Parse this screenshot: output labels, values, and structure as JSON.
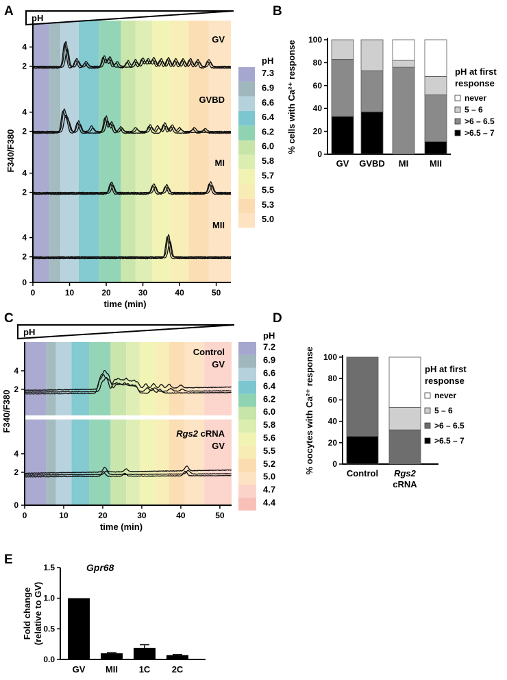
{
  "chart_data": [
    {
      "panel": "A",
      "type": "line",
      "xlabel": "time (min)",
      "ylabel": "F340/F380",
      "gradient_label": "pH",
      "xlim": [
        0,
        54
      ],
      "x_ticks": [
        "0",
        "10",
        "20",
        "30",
        "40",
        "50"
      ],
      "y_ticks_per_trace": [
        "2",
        "4"
      ],
      "y_tick_zero": "0",
      "ph_legend": {
        "title": "pH",
        "values": [
          "7.3",
          "6.9",
          "6.6",
          "6.4",
          "6.2",
          "6.0",
          "5.8",
          "5.7",
          "5.5",
          "5.3",
          "5.0"
        ],
        "colors": [
          "#a6a7cf",
          "#9fb7bd",
          "#b4d1dc",
          "#7cc7cf",
          "#8fd3b3",
          "#c7e5a8",
          "#dcedb0",
          "#f1f3b2",
          "#f7edb4",
          "#fbdcb0",
          "#fde3c2"
        ]
      },
      "band_edges_min": [
        0,
        4.5,
        7.5,
        12.5,
        18,
        24,
        28,
        32.5,
        37.5,
        42.5,
        48,
        54
      ],
      "baseline": 1.9,
      "series": [
        {
          "name": "GV",
          "peaks": [
            [
              9,
              2.6
            ],
            [
              12,
              0.8
            ],
            [
              14.5,
              0.5
            ],
            [
              19.5,
              1.1
            ],
            [
              21,
              1.0
            ],
            [
              23,
              0.5
            ],
            [
              26,
              0.6
            ],
            [
              28,
              0.7
            ],
            [
              30,
              0.9
            ],
            [
              31.5,
              0.8
            ],
            [
              33,
              0.9
            ],
            [
              35,
              0.8
            ],
            [
              37,
              0.9
            ],
            [
              39,
              0.8
            ],
            [
              41,
              0.8
            ],
            [
              43,
              0.8
            ],
            [
              45,
              0.7
            ],
            [
              48,
              0.7
            ]
          ]
        },
        {
          "name": "GVBD",
          "peaks": [
            [
              8.5,
              2.2
            ],
            [
              9.5,
              1.3
            ],
            [
              12.5,
              1.1
            ],
            [
              16,
              0.6
            ],
            [
              20,
              1.6
            ],
            [
              21.5,
              1.0
            ],
            [
              24,
              0.5
            ],
            [
              28,
              0.4
            ],
            [
              32,
              0.7
            ],
            [
              34,
              0.6
            ],
            [
              36,
              0.9
            ],
            [
              38,
              0.7
            ],
            [
              40,
              0.4
            ],
            [
              44,
              0.4
            ],
            [
              47,
              0.3
            ]
          ]
        },
        {
          "name": "MI",
          "peaks": [
            [
              21.5,
              1.1
            ],
            [
              33,
              0.9
            ],
            [
              36.5,
              0.8
            ],
            [
              48.5,
              1.1
            ]
          ]
        },
        {
          "name": "MII",
          "peaks": [
            [
              37,
              2.3
            ]
          ]
        }
      ]
    },
    {
      "panel": "B",
      "type": "bar",
      "ylabel": "% cells with Ca²⁺ response",
      "categories": [
        "GV",
        "GVBD",
        "MI",
        "MII"
      ],
      "ylim": [
        0,
        100
      ],
      "y_ticks": [
        "0",
        "20",
        "40",
        "60",
        "80",
        "100"
      ],
      "legend_title": [
        "pH at first",
        "response"
      ],
      "series": [
        {
          "name": ">6.5 – 7",
          "color": "#000000",
          "values": [
            33,
            37,
            0,
            11
          ]
        },
        {
          "name": ">6 – 6.5",
          "color": "#8a8a8a",
          "values": [
            50,
            36,
            76,
            41
          ]
        },
        {
          "name": "5 – 6",
          "color": "#cfcfcf",
          "values": [
            17,
            27,
            6,
            16
          ]
        },
        {
          "name": "never",
          "color": "#ffffff",
          "values": [
            0,
            0,
            18,
            32
          ]
        }
      ]
    },
    {
      "panel": "C",
      "type": "line",
      "xlabel": "time (min)",
      "ylabel": "F340/F380",
      "gradient_label": "pH",
      "xlim": [
        0,
        53
      ],
      "x_ticks": [
        "0",
        "10",
        "20",
        "30",
        "40",
        "50"
      ],
      "y_ticks_per_trace": [
        "2",
        "4"
      ],
      "y_tick_zero": "0",
      "ph_legend": {
        "title": "pH",
        "values": [
          "7.2",
          "6.9",
          "6.6",
          "6.4",
          "6.2",
          "6.0",
          "5.8",
          "5.6",
          "5.5",
          "5.2",
          "5.0",
          "4.7",
          "4.4"
        ],
        "colors": [
          "#a6a7cf",
          "#9fb7bd",
          "#b4d1dc",
          "#7cc7cf",
          "#8fd3b3",
          "#c7e5a8",
          "#dcedb0",
          "#f1f3b2",
          "#f7edb4",
          "#fbdcb0",
          "#fde3c2",
          "#fcd3c9",
          "#f9c0b8"
        ]
      },
      "band_edges_min": [
        0,
        5.5,
        8,
        12,
        16.5,
        22,
        26,
        29.5,
        33.5,
        37,
        41,
        46,
        53
      ],
      "baseline": 1.7,
      "series": [
        {
          "name": "Control GV",
          "peaks": [
            [
              19.5,
              1.3
            ],
            [
              20.5,
              1.8
            ],
            [
              21.5,
              1.4
            ],
            [
              23,
              0.9
            ],
            [
              24,
              1.0
            ],
            [
              25,
              0.8
            ],
            [
              26,
              1.0
            ],
            [
              27,
              0.7
            ],
            [
              28,
              0.8
            ],
            [
              29,
              0.6
            ],
            [
              31,
              0.5
            ],
            [
              33,
              0.5
            ],
            [
              35,
              0.4
            ],
            [
              37,
              0.4
            ],
            [
              40,
              0.3
            ]
          ]
        },
        {
          "name": "Rgs2 cRNA GV",
          "peaks": [
            [
              20.5,
              0.5
            ],
            [
              26,
              0.3
            ],
            [
              41.5,
              0.5
            ]
          ]
        }
      ]
    },
    {
      "panel": "D",
      "type": "bar",
      "ylabel": "% oocytes with Ca²⁺ response",
      "categories": [
        "Control",
        "Rgs2 cRNA"
      ],
      "ylim": [
        0,
        100
      ],
      "y_ticks": [
        "0",
        "20",
        "40",
        "60",
        "80",
        "100"
      ],
      "legend_title": [
        "pH at first",
        "response"
      ],
      "series": [
        {
          "name": ">6.5 – 7",
          "color": "#000000",
          "values": [
            26,
            0
          ]
        },
        {
          "name": ">6 – 6.5",
          "color": "#6e6e6e",
          "values": [
            74,
            32
          ]
        },
        {
          "name": "5 – 6",
          "color": "#cfcfcf",
          "values": [
            0,
            21
          ]
        },
        {
          "name": "never",
          "color": "#ffffff",
          "values": [
            0,
            47
          ]
        }
      ]
    },
    {
      "panel": "E",
      "type": "bar",
      "title": "Gpr68",
      "ylabel": "Fold change (relative to GV)",
      "categories": [
        "GV",
        "MII",
        "1C",
        "2C"
      ],
      "values": [
        1.0,
        0.1,
        0.19,
        0.07
      ],
      "errors": [
        0.0,
        0.01,
        0.05,
        0.01
      ],
      "ylim": [
        0,
        1.5
      ],
      "y_ticks": [
        "0.0",
        "0.5",
        "1.0",
        "1.5"
      ]
    }
  ]
}
